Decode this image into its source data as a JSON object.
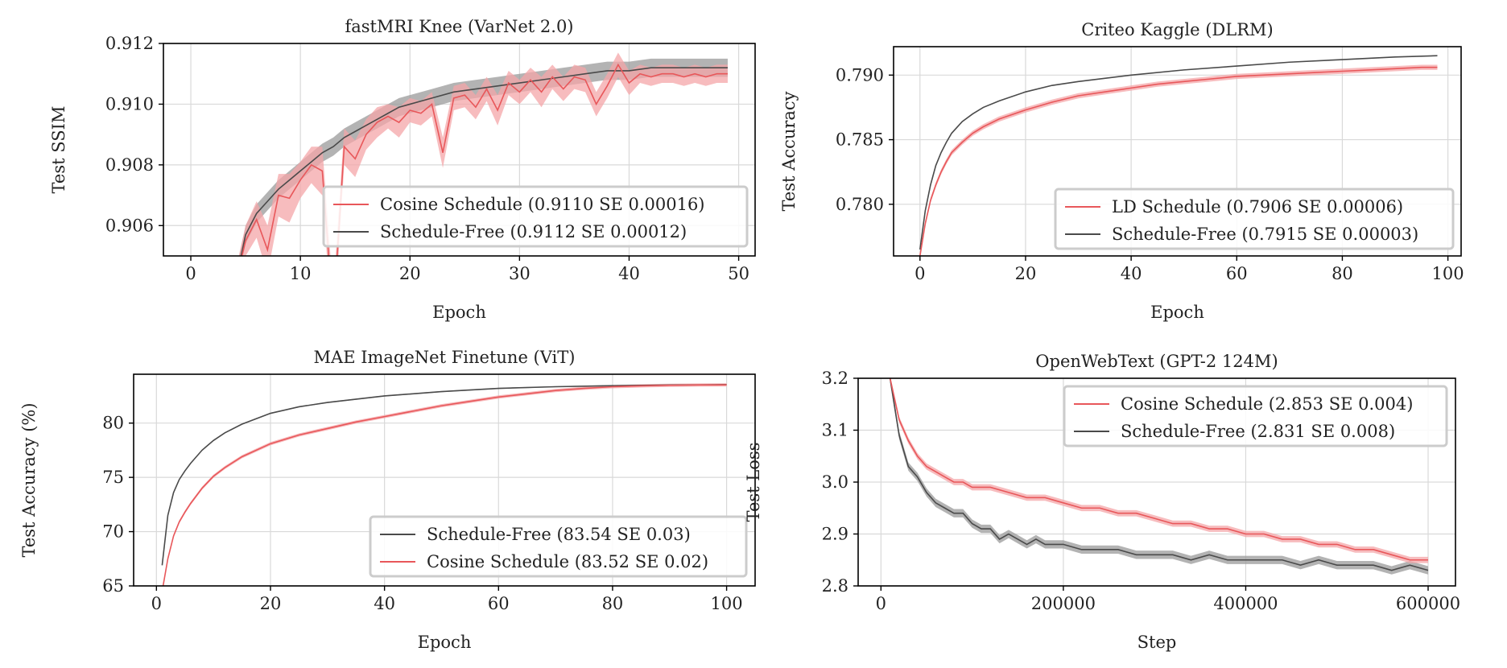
{
  "colors": {
    "cosine": "#e8575a",
    "cosine_band": "#f4a6a8",
    "schedule_free": "#4a4a4a",
    "schedule_free_band": "#9a9a9a",
    "grid": "#d9d9d9",
    "axes": "#000000"
  },
  "chart_data": [
    {
      "id": "knee",
      "type": "line",
      "title": "fastMRI Knee (VarNet 2.0)",
      "xlabel": "Epoch",
      "ylabel": "Test SSIM",
      "xlim": [
        -2.5,
        51.5
      ],
      "ylim": [
        0.905,
        0.912
      ],
      "xticks": [
        0,
        10,
        20,
        30,
        40,
        50
      ],
      "yticks": [
        0.906,
        0.908,
        0.91,
        0.912
      ],
      "ytick_labels": [
        "0.906",
        "0.908",
        "0.910",
        "0.912"
      ],
      "grid": true,
      "legend_position": "lower-right",
      "legend": [
        {
          "label": "Cosine Schedule (0.9110 SE 0.00016)",
          "color_key": "cosine"
        },
        {
          "label": "Schedule-Free (0.9112 SE 0.00012)",
          "color_key": "schedule_free"
        }
      ],
      "series": [
        {
          "name": "Schedule-Free",
          "color_key": "schedule_free",
          "band_key": "schedule_free_band",
          "x": [
            4,
            5,
            6,
            7,
            8,
            9,
            10,
            11,
            12,
            13,
            14,
            15,
            16,
            17,
            18,
            19,
            20,
            22,
            24,
            26,
            28,
            30,
            32,
            34,
            36,
            38,
            40,
            42,
            44,
            46,
            48,
            49
          ],
          "y": [
            0.904,
            0.9057,
            0.9064,
            0.9068,
            0.9072,
            0.9075,
            0.9078,
            0.9081,
            0.9084,
            0.9086,
            0.9089,
            0.9091,
            0.9093,
            0.9095,
            0.9097,
            0.9099,
            0.91,
            0.9102,
            0.9104,
            0.9105,
            0.9106,
            0.9107,
            0.9108,
            0.9109,
            0.911,
            0.9111,
            0.9111,
            0.9112,
            0.9112,
            0.9112,
            0.9112,
            0.9112
          ],
          "err": [
            0.0003,
            0.0003,
            0.0003,
            0.0003,
            0.0003,
            0.0003,
            0.0003,
            0.0003,
            0.0003,
            0.0003,
            0.0003,
            0.0003,
            0.0003,
            0.0003,
            0.0003,
            0.0003,
            0.0003,
            0.0003,
            0.0003,
            0.0003,
            0.0003,
            0.0003,
            0.0003,
            0.0003,
            0.0003,
            0.0003,
            0.0003,
            0.0003,
            0.0003,
            0.0003,
            0.0003,
            0.0003
          ]
        },
        {
          "name": "Cosine Schedule",
          "color_key": "cosine",
          "band_key": "cosine_band",
          "x": [
            4,
            5,
            6,
            7,
            8,
            9,
            10,
            11,
            12,
            13,
            14,
            15,
            16,
            17,
            18,
            19,
            20,
            21,
            22,
            23,
            24,
            25,
            26,
            27,
            28,
            29,
            30,
            31,
            32,
            33,
            34,
            35,
            36,
            37,
            38,
            39,
            40,
            41,
            42,
            43,
            44,
            45,
            46,
            47,
            48,
            49
          ],
          "y": [
            0.904,
            0.9055,
            0.9062,
            0.9052,
            0.907,
            0.9069,
            0.9075,
            0.908,
            0.9078,
            0.903,
            0.9086,
            0.9082,
            0.909,
            0.9094,
            0.9096,
            0.9094,
            0.9098,
            0.9097,
            0.91,
            0.9084,
            0.9102,
            0.9103,
            0.9099,
            0.9105,
            0.9098,
            0.9107,
            0.9104,
            0.9108,
            0.9104,
            0.9109,
            0.9105,
            0.9109,
            0.9108,
            0.91,
            0.9106,
            0.9113,
            0.9107,
            0.911,
            0.9109,
            0.911,
            0.911,
            0.9109,
            0.911,
            0.9109,
            0.911,
            0.911
          ],
          "err": [
            0.0004,
            0.0005,
            0.0006,
            0.0008,
            0.0007,
            0.0008,
            0.0006,
            0.0006,
            0.0008,
            0.0008,
            0.0006,
            0.0006,
            0.0005,
            0.0005,
            0.0004,
            0.0005,
            0.0004,
            0.0004,
            0.0004,
            0.0005,
            0.0004,
            0.0004,
            0.0004,
            0.0004,
            0.0005,
            0.0004,
            0.0004,
            0.0004,
            0.0005,
            0.0004,
            0.0004,
            0.0004,
            0.0004,
            0.0004,
            0.0004,
            0.0004,
            0.0004,
            0.0003,
            0.0003,
            0.0003,
            0.0003,
            0.0003,
            0.0003,
            0.0003,
            0.0003,
            0.0003
          ]
        }
      ]
    },
    {
      "id": "criteo",
      "type": "line",
      "title": "Criteo Kaggle (DLRM)",
      "xlabel": "Epoch",
      "ylabel": "Test Accuracy",
      "xlim": [
        -5,
        102.5
      ],
      "ylim": [
        0.776,
        0.7922
      ],
      "xticks": [
        0,
        20,
        40,
        60,
        80,
        100
      ],
      "yticks": [
        0.78,
        0.785,
        0.79
      ],
      "ytick_labels": [
        "0.780",
        "0.785",
        "0.790"
      ],
      "grid": true,
      "legend_position": "lower-right",
      "legend": [
        {
          "label": "LD Schedule (0.7906 SE 0.00006)",
          "color_key": "cosine"
        },
        {
          "label": "Schedule-Free (0.7915 SE 0.00003)",
          "color_key": "schedule_free"
        }
      ],
      "series": [
        {
          "name": "Schedule-Free",
          "color_key": "schedule_free",
          "band_key": "schedule_free_band",
          "x": [
            0,
            1,
            2,
            3,
            4,
            5,
            6,
            8,
            10,
            12,
            15,
            20,
            25,
            30,
            40,
            50,
            60,
            70,
            80,
            90,
            98
          ],
          "y": [
            0.7765,
            0.7795,
            0.7815,
            0.783,
            0.784,
            0.7848,
            0.7855,
            0.7864,
            0.787,
            0.7875,
            0.788,
            0.7887,
            0.7892,
            0.7895,
            0.79,
            0.7904,
            0.7907,
            0.791,
            0.7912,
            0.7914,
            0.7915
          ],
          "err": [
            3e-05,
            3e-05,
            3e-05,
            3e-05,
            3e-05,
            3e-05,
            3e-05,
            3e-05,
            3e-05,
            3e-05,
            3e-05,
            3e-05,
            3e-05,
            3e-05,
            3e-05,
            3e-05,
            3e-05,
            3e-05,
            3e-05,
            3e-05,
            3e-05
          ]
        },
        {
          "name": "LD Schedule",
          "color_key": "cosine",
          "band_key": "cosine_band",
          "x": [
            0,
            1,
            2,
            3,
            4,
            5,
            6,
            8,
            10,
            12,
            15,
            20,
            25,
            30,
            35,
            40,
            45,
            50,
            55,
            60,
            65,
            70,
            75,
            80,
            85,
            90,
            95,
            98
          ],
          "y": [
            0.776,
            0.7785,
            0.7803,
            0.7815,
            0.7825,
            0.7833,
            0.784,
            0.7848,
            0.7855,
            0.786,
            0.7866,
            0.7873,
            0.7879,
            0.7884,
            0.7887,
            0.789,
            0.7893,
            0.7895,
            0.7897,
            0.7899,
            0.79,
            0.7901,
            0.7902,
            0.7903,
            0.7904,
            0.7905,
            0.7906,
            0.7906
          ],
          "err": [
            0.0002,
            0.0002,
            0.0002,
            0.0002,
            0.0002,
            0.0002,
            0.0002,
            0.0002,
            0.0002,
            0.0002,
            0.0002,
            0.0002,
            0.0002,
            0.0002,
            0.0002,
            0.0002,
            0.0002,
            0.0002,
            0.0002,
            0.0002,
            0.0002,
            0.0002,
            0.0002,
            0.0002,
            0.0002,
            0.0002,
            0.0002,
            0.0002
          ]
        }
      ]
    },
    {
      "id": "mae",
      "type": "line",
      "title": "MAE ImageNet Finetune (ViT)",
      "xlabel": "Epoch",
      "ylabel": "Test Accuracy (%)",
      "xlim": [
        -4,
        105
      ],
      "ylim": [
        65,
        84.5
      ],
      "xticks": [
        0,
        20,
        40,
        60,
        80,
        100
      ],
      "yticks": [
        65,
        70,
        75,
        80
      ],
      "ytick_labels": [
        "65",
        "70",
        "75",
        "80"
      ],
      "grid": true,
      "legend_position": "lower-right",
      "legend": [
        {
          "label": "Schedule-Free (83.54 SE 0.03)",
          "color_key": "schedule_free"
        },
        {
          "label": "Cosine Schedule (83.52 SE 0.02)",
          "color_key": "cosine"
        }
      ],
      "series": [
        {
          "name": "Schedule-Free",
          "color_key": "schedule_free",
          "band_key": "schedule_free_band",
          "x": [
            1,
            2,
            3,
            4,
            5,
            6,
            8,
            10,
            12,
            15,
            20,
            25,
            30,
            40,
            50,
            60,
            70,
            80,
            90,
            100
          ],
          "y": [
            66.9,
            71.5,
            73.6,
            74.8,
            75.6,
            76.3,
            77.5,
            78.4,
            79.1,
            79.9,
            80.9,
            81.5,
            81.9,
            82.5,
            82.9,
            83.2,
            83.35,
            83.45,
            83.5,
            83.54
          ],
          "err": [
            0.05,
            0.05,
            0.05,
            0.05,
            0.05,
            0.05,
            0.05,
            0.05,
            0.05,
            0.05,
            0.05,
            0.05,
            0.05,
            0.05,
            0.05,
            0.05,
            0.05,
            0.05,
            0.05,
            0.05
          ]
        },
        {
          "name": "Cosine Schedule",
          "color_key": "cosine",
          "band_key": "cosine_band",
          "x": [
            1,
            2,
            3,
            4,
            5,
            6,
            8,
            10,
            12,
            15,
            20,
            25,
            30,
            35,
            40,
            45,
            50,
            55,
            60,
            65,
            70,
            75,
            80,
            85,
            90,
            95,
            100
          ],
          "y": [
            64.5,
            67.5,
            69.6,
            70.9,
            71.8,
            72.6,
            74.0,
            75.1,
            75.9,
            76.9,
            78.1,
            78.9,
            79.5,
            80.1,
            80.6,
            81.1,
            81.6,
            82.0,
            82.4,
            82.7,
            83.0,
            83.2,
            83.35,
            83.43,
            83.48,
            83.51,
            83.52
          ],
          "err": [
            0.15,
            0.15,
            0.15,
            0.15,
            0.15,
            0.15,
            0.15,
            0.15,
            0.15,
            0.15,
            0.15,
            0.15,
            0.15,
            0.15,
            0.15,
            0.15,
            0.15,
            0.15,
            0.15,
            0.15,
            0.15,
            0.15,
            0.15,
            0.15,
            0.15,
            0.15,
            0.15
          ]
        }
      ]
    },
    {
      "id": "owt",
      "type": "line",
      "title": "OpenWebText (GPT-2 124M)",
      "xlabel": "Step",
      "ylabel": "Test Loss",
      "xlim": [
        -25000,
        630000
      ],
      "ylim": [
        2.8,
        3.2
      ],
      "xticks": [
        0,
        200000,
        400000,
        600000
      ],
      "yticks": [
        2.8,
        2.9,
        3.0,
        3.1,
        3.2
      ],
      "ytick_labels": [
        "2.8",
        "2.9",
        "3.0",
        "3.1",
        "3.2"
      ],
      "grid": true,
      "legend_position": "upper-right",
      "legend": [
        {
          "label": "Cosine Schedule (2.853 SE 0.004)",
          "color_key": "cosine"
        },
        {
          "label": "Schedule-Free (2.831 SE 0.008)",
          "color_key": "schedule_free"
        }
      ],
      "series": [
        {
          "name": "Schedule-Free",
          "color_key": "schedule_free",
          "band_key": "schedule_free_band",
          "x": [
            10000,
            20000,
            30000,
            40000,
            50000,
            60000,
            70000,
            80000,
            90000,
            100000,
            110000,
            120000,
            130000,
            140000,
            150000,
            160000,
            170000,
            180000,
            190000,
            200000,
            220000,
            240000,
            260000,
            280000,
            300000,
            320000,
            340000,
            360000,
            380000,
            400000,
            420000,
            440000,
            460000,
            480000,
            500000,
            520000,
            540000,
            560000,
            580000,
            600000
          ],
          "y": [
            3.2,
            3.09,
            3.03,
            3.01,
            2.98,
            2.96,
            2.95,
            2.94,
            2.94,
            2.92,
            2.91,
            2.91,
            2.89,
            2.9,
            2.89,
            2.88,
            2.89,
            2.88,
            2.88,
            2.88,
            2.87,
            2.87,
            2.87,
            2.86,
            2.86,
            2.86,
            2.85,
            2.86,
            2.85,
            2.85,
            2.85,
            2.85,
            2.84,
            2.85,
            2.84,
            2.84,
            2.84,
            2.83,
            2.84,
            2.83
          ],
          "err": [
            0.008,
            0.008,
            0.008,
            0.008,
            0.008,
            0.008,
            0.008,
            0.008,
            0.008,
            0.008,
            0.008,
            0.008,
            0.008,
            0.008,
            0.008,
            0.008,
            0.008,
            0.008,
            0.008,
            0.008,
            0.008,
            0.008,
            0.008,
            0.008,
            0.008,
            0.008,
            0.008,
            0.008,
            0.008,
            0.008,
            0.008,
            0.008,
            0.008,
            0.008,
            0.008,
            0.008,
            0.008,
            0.008,
            0.008,
            0.008
          ]
        },
        {
          "name": "Cosine Schedule",
          "color_key": "cosine",
          "band_key": "cosine_band",
          "x": [
            10000,
            20000,
            30000,
            40000,
            50000,
            60000,
            70000,
            80000,
            90000,
            100000,
            120000,
            140000,
            160000,
            180000,
            200000,
            220000,
            240000,
            260000,
            280000,
            300000,
            320000,
            340000,
            360000,
            380000,
            400000,
            420000,
            440000,
            460000,
            480000,
            500000,
            520000,
            540000,
            560000,
            580000,
            600000
          ],
          "y": [
            3.2,
            3.12,
            3.08,
            3.05,
            3.03,
            3.02,
            3.01,
            3.0,
            3.0,
            2.99,
            2.99,
            2.98,
            2.97,
            2.97,
            2.96,
            2.95,
            2.95,
            2.94,
            2.94,
            2.93,
            2.92,
            2.92,
            2.91,
            2.91,
            2.9,
            2.9,
            2.89,
            2.89,
            2.88,
            2.88,
            2.87,
            2.87,
            2.86,
            2.85,
            2.85
          ],
          "err": [
            0.006,
            0.006,
            0.006,
            0.006,
            0.006,
            0.006,
            0.006,
            0.006,
            0.006,
            0.006,
            0.006,
            0.006,
            0.006,
            0.006,
            0.006,
            0.006,
            0.006,
            0.006,
            0.006,
            0.006,
            0.006,
            0.006,
            0.006,
            0.006,
            0.006,
            0.006,
            0.006,
            0.006,
            0.006,
            0.006,
            0.006,
            0.006,
            0.006,
            0.006,
            0.006
          ]
        }
      ]
    }
  ]
}
